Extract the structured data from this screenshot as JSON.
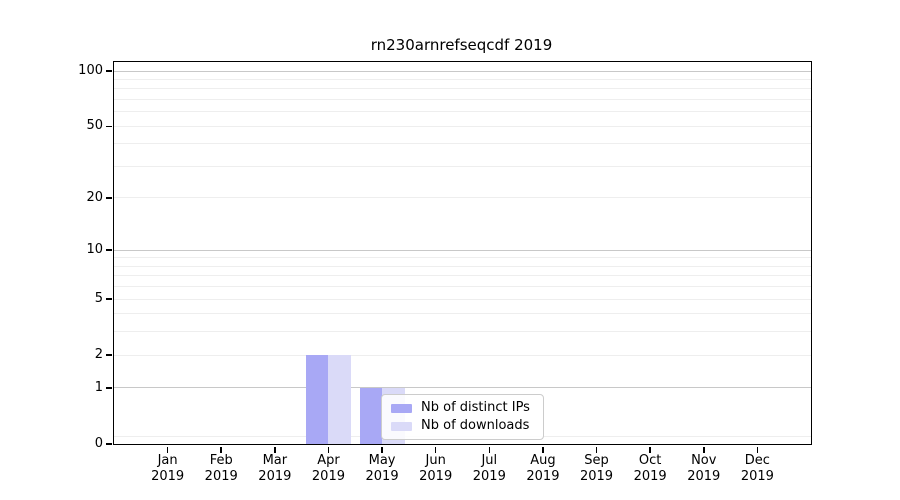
{
  "chart_data": {
    "type": "bar",
    "title": "rn230arnrefseqcdf 2019",
    "categories": [
      "Jan",
      "Feb",
      "Mar",
      "Apr",
      "May",
      "Jun",
      "Jul",
      "Aug",
      "Sep",
      "Oct",
      "Nov",
      "Dec"
    ],
    "category_year": "2019",
    "series": [
      {
        "name": "Nb of distinct IPs",
        "color": "#a8a8f5",
        "values": [
          0,
          0,
          0,
          2,
          1,
          0,
          0,
          0,
          0,
          0,
          0,
          0
        ]
      },
      {
        "name": "Nb of downloads",
        "color": "#dadaf8",
        "values": [
          0,
          0,
          0,
          2,
          1,
          0,
          0,
          0,
          0,
          0,
          0,
          0
        ]
      }
    ],
    "xlabel": "",
    "ylabel": "",
    "yscale": "log1p",
    "ylim": [
      0,
      112
    ],
    "yticks": [
      100,
      50,
      20,
      10,
      5,
      2,
      1,
      0
    ],
    "gridlines": {
      "major": [
        1,
        10,
        100
      ],
      "minor": [
        0.1,
        2,
        3,
        4,
        5,
        6,
        7,
        8,
        9,
        20,
        30,
        40,
        50,
        60,
        70,
        80,
        90
      ]
    },
    "grid": "on",
    "legend_position": "inside-bottom-center",
    "colors": {
      "grid_major": "#c8c8c8",
      "grid_minor": "#eeeeee",
      "spine": "#000000",
      "background": "#ffffff"
    }
  }
}
